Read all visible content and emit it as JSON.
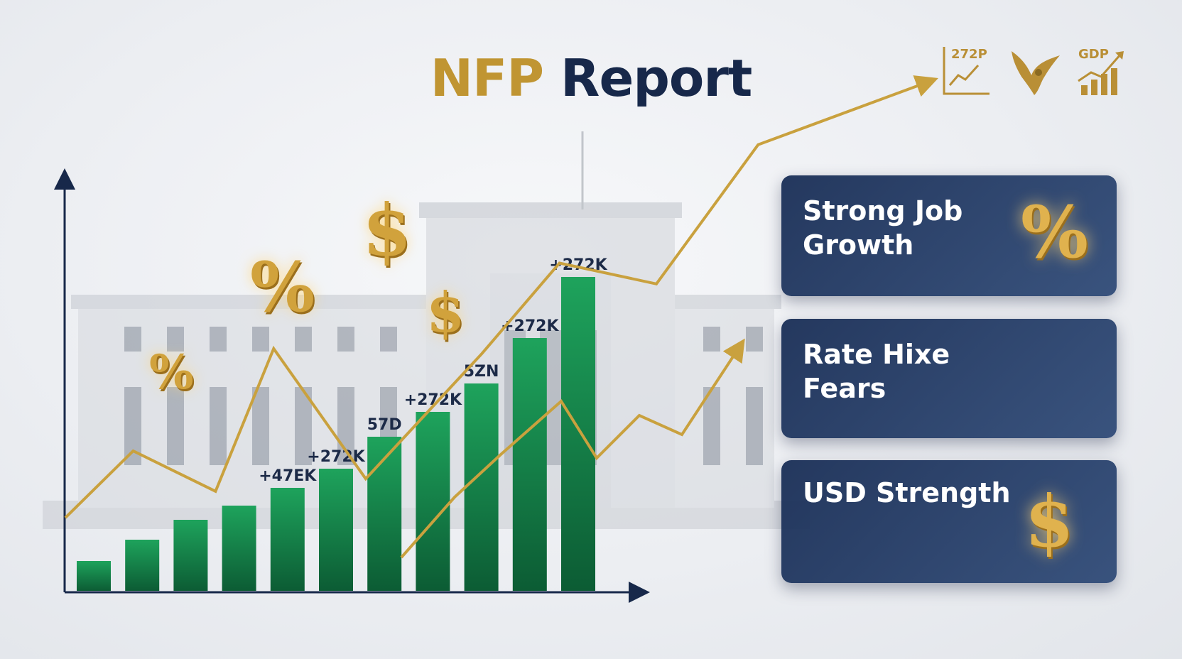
{
  "title": {
    "accent": "NFP",
    "main": "Report"
  },
  "top_icons": [
    {
      "name": "chart-icon",
      "label": "272P"
    },
    {
      "name": "eagle-icon",
      "label": ""
    },
    {
      "name": "gdp-icon",
      "label": "GDP"
    }
  ],
  "cards": [
    {
      "title": "Strong Job Growth",
      "icon": "%"
    },
    {
      "title": "Rate Hixe Fears",
      "icon": ""
    },
    {
      "title": "USD Strength",
      "icon": "$"
    }
  ],
  "symbols": {
    "percent": "%",
    "dollar": "$"
  },
  "colors": {
    "gold": "#c09532",
    "navy": "#17284a",
    "bar_green": "#17904f",
    "card_bg": "#1d3560"
  },
  "chart_data": {
    "type": "bar",
    "bar_heights": [
      42,
      72,
      100,
      120,
      145,
      172,
      217,
      252,
      292,
      356,
      442
    ],
    "bar_labels": [
      "",
      "",
      "",
      "",
      "+47EK",
      "+272K",
      "57D",
      "+272K",
      "5ZN",
      "+272K",
      "+272K"
    ],
    "trend_line": [
      [
        0,
        54
      ],
      [
        1.4,
        150
      ],
      [
        3.1,
        92
      ],
      [
        4.3,
        297
      ],
      [
        6.2,
        110
      ],
      [
        8.6,
        290
      ],
      [
        10.2,
        420
      ],
      [
        12.2,
        390
      ],
      [
        14.3,
        590
      ],
      [
        17.8,
        680
      ]
    ],
    "xlabel": "",
    "ylabel": "",
    "grid": false
  }
}
